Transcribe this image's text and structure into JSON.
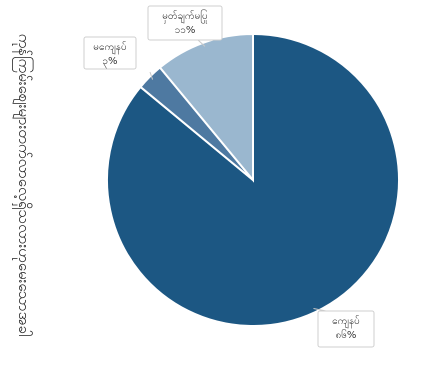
{
  "title": "ကုန်ကြမ်းစျေးများတက်လာလေ့ရှိသလားဟုမေးသောအခါ",
  "chart_data": {
    "type": "pie",
    "title": "ကုန်ကြမ်းစျေးများတက်လာလေ့ရှိသလားဟုမေးသောအခါ",
    "categories": [
      "ကျေနပ်",
      "မကျေနပ်",
      "မှတ်ချက်မပြု"
    ],
    "values": [
      86,
      3,
      11
    ],
    "labels": [
      "၈၆%",
      "၃%",
      "၁၁%"
    ],
    "colors": [
      "#1c5783",
      "#4e79a1",
      "#9ab7cf"
    ],
    "start_angle": "12 o'clock",
    "direction": "clockwise, starting with the largest slice"
  }
}
